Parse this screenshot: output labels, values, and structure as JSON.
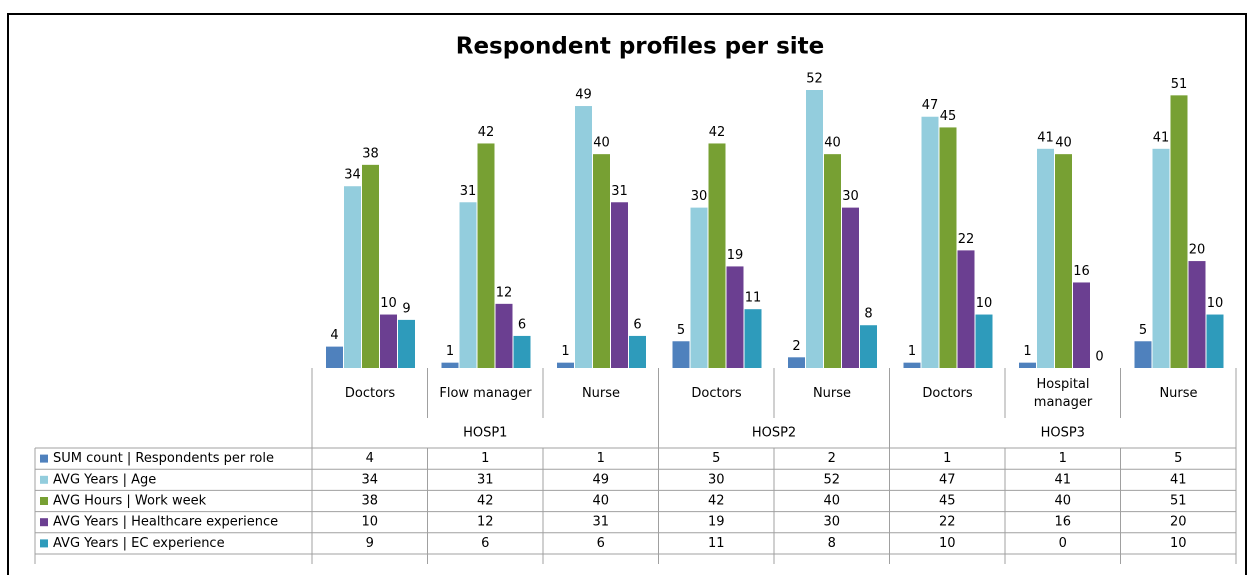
{
  "chart_data": {
    "type": "bar",
    "title": "Respondent profiles per site",
    "categories": [
      "Doctors",
      "Flow manager",
      "Nurse",
      "Doctors",
      "Nurse",
      "Doctors",
      "Hospital manager",
      "Nurse"
    ],
    "groups": [
      {
        "name": "HOSP1",
        "count": 3
      },
      {
        "name": "HOSP2",
        "count": 2
      },
      {
        "name": "HOSP3",
        "count": 3
      }
    ],
    "series": [
      {
        "name": "SUM count | Respondents per role",
        "color": "#4f81bd",
        "values": [
          4,
          1,
          1,
          5,
          2,
          1,
          1,
          5
        ]
      },
      {
        "name": "AVG Years | Age",
        "color": "#93cddd",
        "values": [
          34,
          31,
          49,
          30,
          52,
          47,
          41,
          41
        ]
      },
      {
        "name": "AVG Hours | Work week",
        "color": "#77a033",
        "values": [
          38,
          42,
          40,
          42,
          40,
          45,
          40,
          51
        ]
      },
      {
        "name": "AVG Years | Healthcare experience",
        "color": "#6b3f91",
        "values": [
          10,
          12,
          31,
          19,
          30,
          22,
          16,
          20
        ]
      },
      {
        "name": "AVG Years | EC experience",
        "color": "#2e9bbb",
        "values": [
          9,
          6,
          6,
          11,
          8,
          10,
          0,
          10
        ]
      }
    ]
  }
}
